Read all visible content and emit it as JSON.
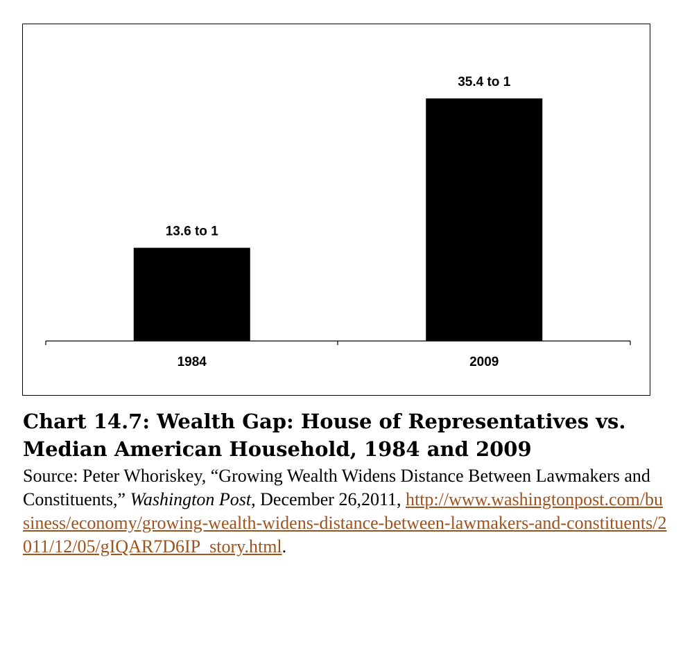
{
  "chart_data": {
    "type": "bar",
    "categories": [
      "1984",
      "2009"
    ],
    "values": [
      13.6,
      35.4
    ],
    "data_labels": [
      "13.6 to 1",
      "35.4 to 1"
    ],
    "ylim": [
      0,
      40
    ],
    "grid": false,
    "bar_color": "#000000"
  },
  "caption": {
    "title": "Chart 14.7: Wealth Gap: House of Representatives vs. Median American Household, 1984 and 2009",
    "source_prefix": "Source: Peter Whoriskey, “Growing Wealth Widens Distance Between Lawmakers and Constituents,” ",
    "source_publication": "Washington Post",
    "source_date": ", December 26,2011, ",
    "source_url": "http://www.washingtonpost.com/business/economy/growing-wealth-widens-distance-between-lawmakers-and-constituents/2011/12/05/gIQAR7D6IP_story.html",
    "source_end": ".",
    "link_color": "#a0521d"
  }
}
